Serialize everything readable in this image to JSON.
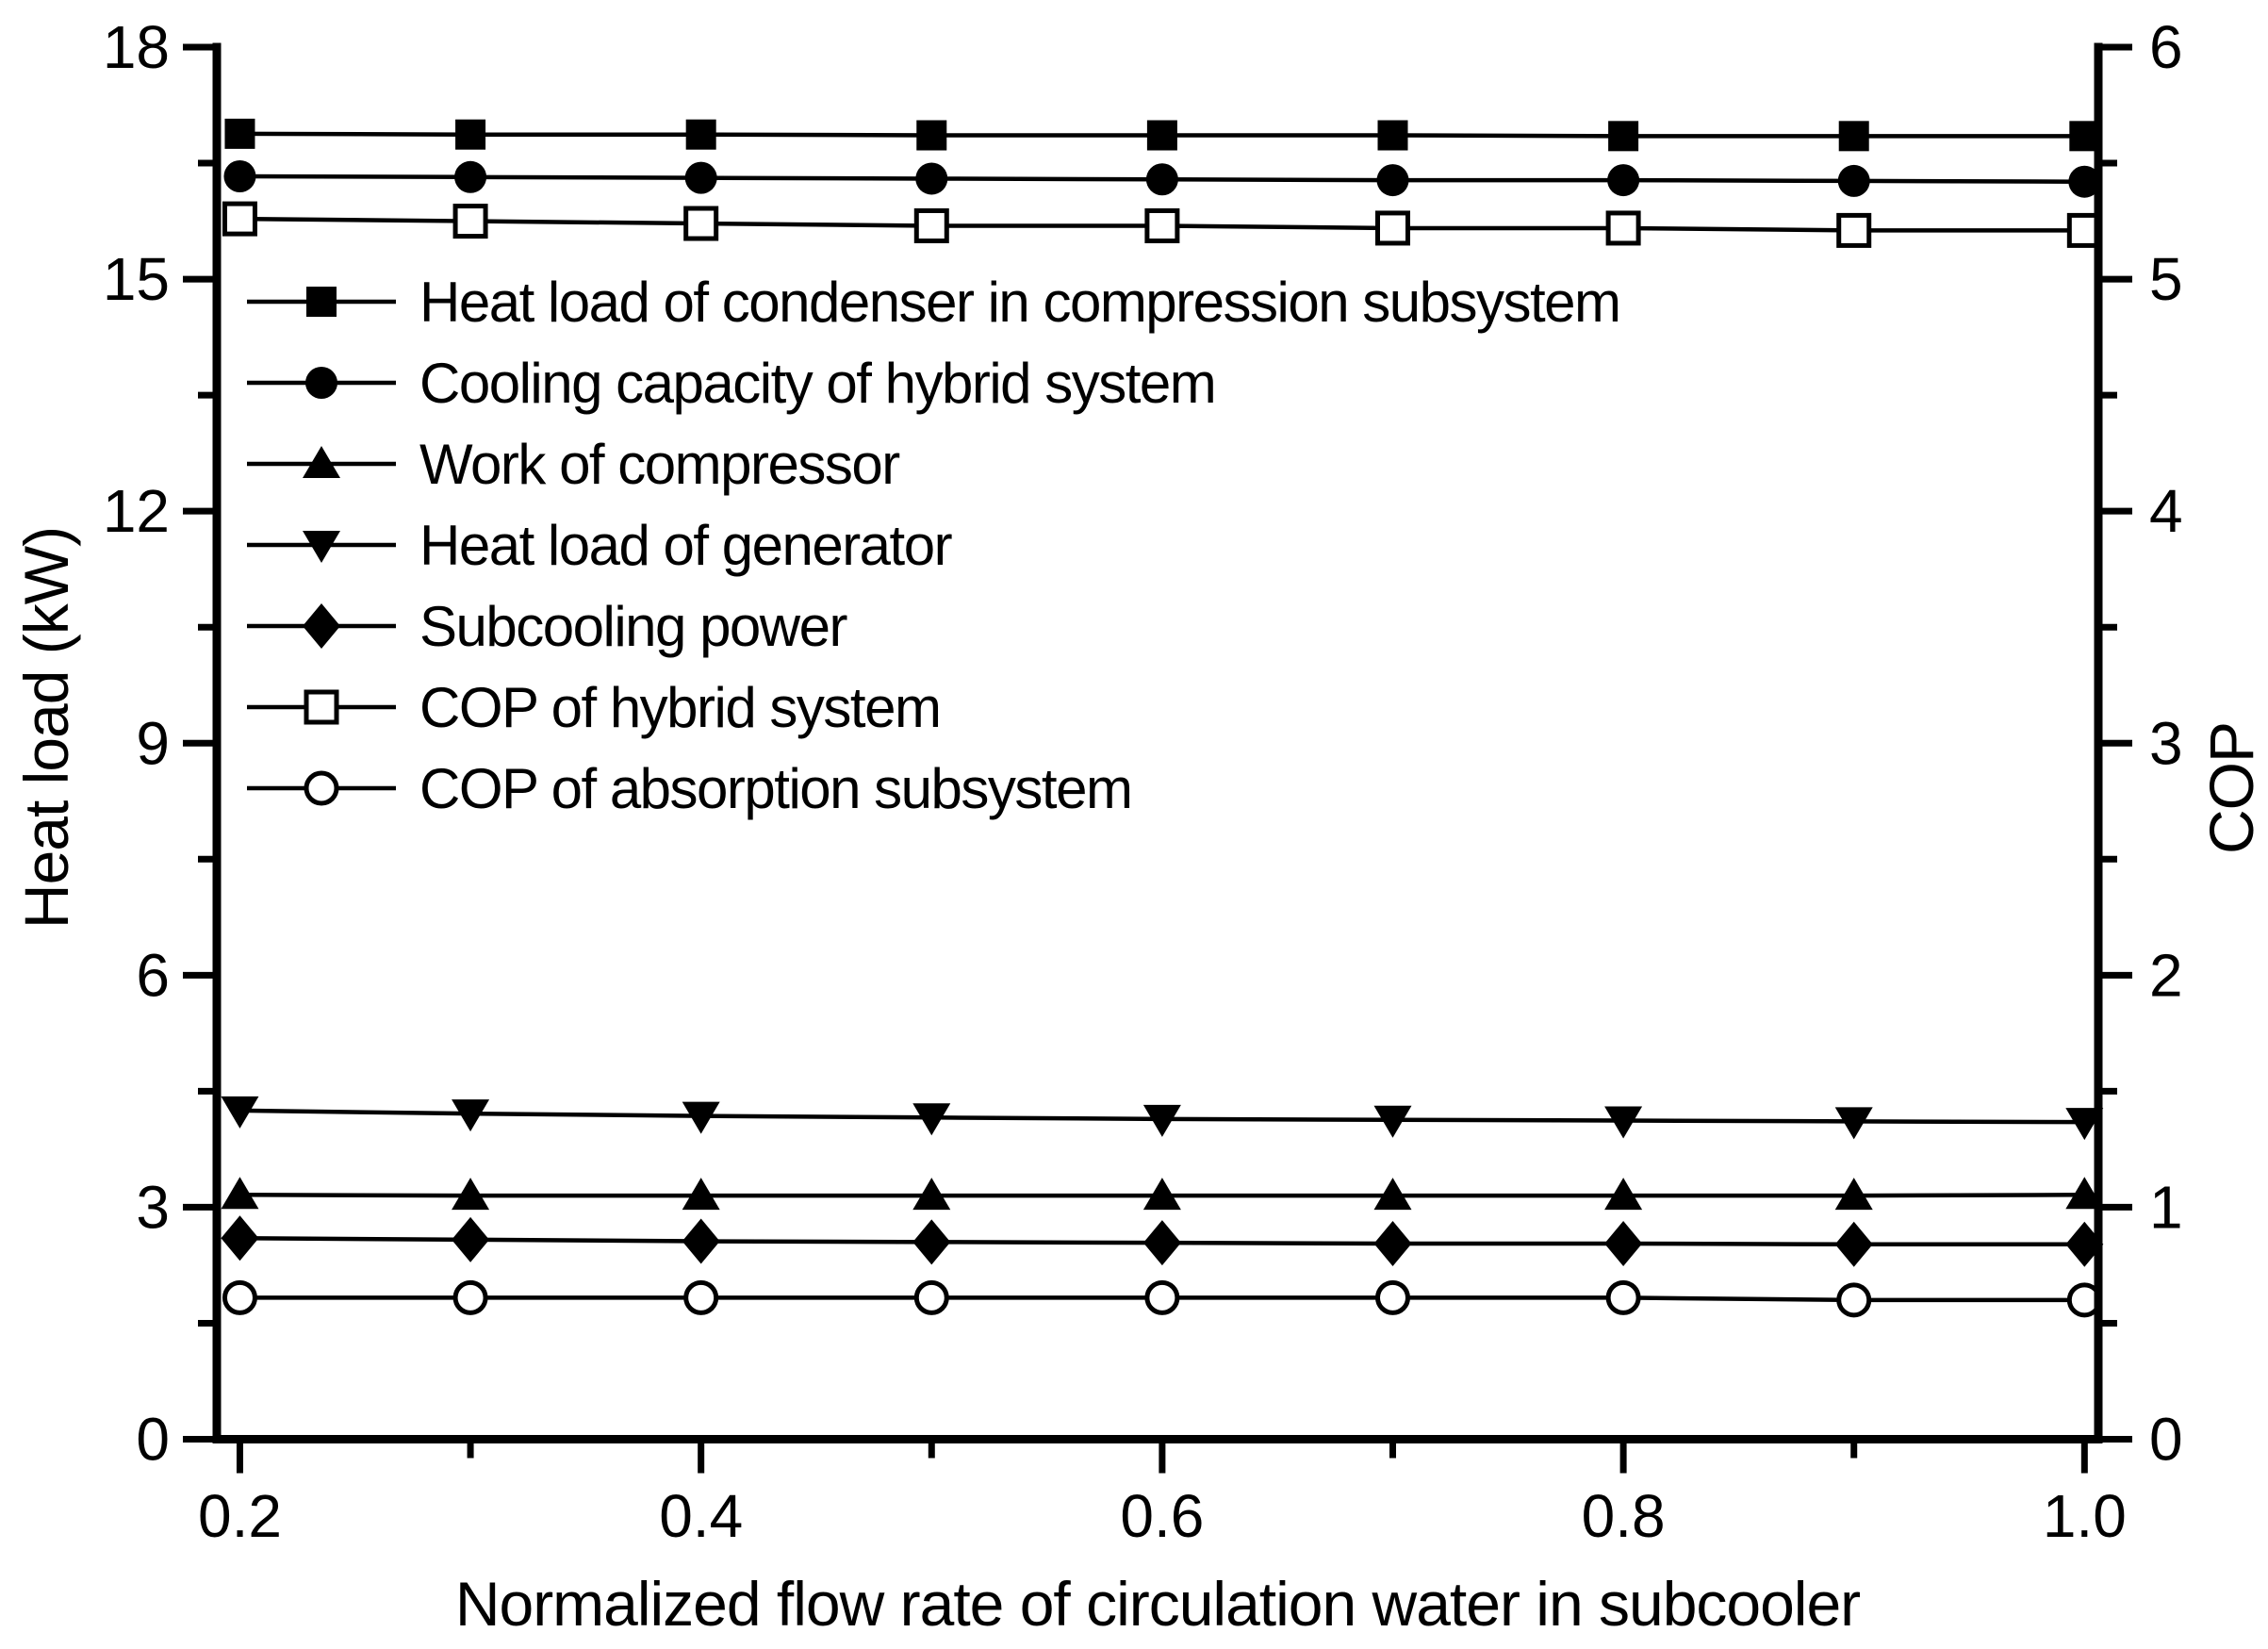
{
  "figure": {
    "background": "#ffffff",
    "ink": "#000000"
  },
  "chart_data": {
    "type": "line",
    "title": "",
    "xlabel": "Normalized flow rate of circulation water in subcooler",
    "ylabel_left": "Heat load (kW)",
    "ylabel_right": "COP",
    "grid": false,
    "legend_position": "upper-left-inside",
    "xlim": [
      0.19,
      1.006
    ],
    "x_ticks": [
      0.2,
      0.4,
      0.6,
      0.8,
      1.0
    ],
    "x_tick_labels": [
      "0.2",
      "0.4",
      "0.6",
      "0.8",
      "1.0"
    ],
    "x_minor_ticks": [
      0.3,
      0.5,
      0.7,
      0.9
    ],
    "ylim_left": [
      0,
      18
    ],
    "y_ticks_left": [
      0,
      3,
      6,
      9,
      12,
      15,
      18
    ],
    "y_tick_labels_left": [
      "0",
      "3",
      "6",
      "9",
      "12",
      "15",
      "18"
    ],
    "y_minor_ticks_left": [
      1.5,
      4.5,
      7.5,
      10.5,
      13.5,
      16.5
    ],
    "ylim_right": [
      0,
      6
    ],
    "y_ticks_right": [
      0,
      1,
      2,
      3,
      4,
      5,
      6
    ],
    "y_tick_labels_right": [
      "0",
      "1",
      "2",
      "3",
      "4",
      "5",
      "6"
    ],
    "y_minor_ticks_right": [
      0.5,
      1.5,
      2.5,
      3.5,
      4.5,
      5.5
    ],
    "x": [
      0.2,
      0.3,
      0.4,
      0.5,
      0.6,
      0.7,
      0.8,
      0.9,
      1.0
    ],
    "series": [
      {
        "id": "condenser-heat-load",
        "name": "Heat load of condenser in compression subsystem",
        "marker": "square-filled",
        "axis": "left",
        "values": [
          16.88,
          16.87,
          16.87,
          16.86,
          16.86,
          16.86,
          16.85,
          16.85,
          16.85
        ]
      },
      {
        "id": "cooling-capacity",
        "name": "Cooling capacity of hybrid system",
        "marker": "circle-filled",
        "axis": "left",
        "values": [
          16.33,
          16.32,
          16.31,
          16.3,
          16.29,
          16.28,
          16.28,
          16.27,
          16.26
        ]
      },
      {
        "id": "compressor-work",
        "name": "Work of compressor",
        "marker": "triangle-up-filled",
        "axis": "left",
        "values": [
          3.16,
          3.15,
          3.15,
          3.15,
          3.15,
          3.15,
          3.15,
          3.15,
          3.16
        ]
      },
      {
        "id": "generator-heat-load",
        "name": "Heat load of generator",
        "marker": "triangle-down-filled",
        "axis": "left",
        "values": [
          4.25,
          4.21,
          4.18,
          4.16,
          4.14,
          4.13,
          4.12,
          4.11,
          4.1
        ]
      },
      {
        "id": "subcooling-power",
        "name": "Subcooling power",
        "marker": "diamond-filled",
        "axis": "left",
        "values": [
          2.6,
          2.58,
          2.56,
          2.55,
          2.54,
          2.53,
          2.53,
          2.52,
          2.52
        ]
      },
      {
        "id": "cop-hybrid",
        "name": "COP of hybrid system",
        "marker": "square-open",
        "axis": "right",
        "values": [
          5.26,
          5.25,
          5.24,
          5.23,
          5.23,
          5.22,
          5.22,
          5.21,
          5.21
        ]
      },
      {
        "id": "cop-absorption",
        "name": "COP of absorption subsystem",
        "marker": "circle-open",
        "axis": "right",
        "values": [
          0.61,
          0.61,
          0.61,
          0.61,
          0.61,
          0.61,
          0.61,
          0.6,
          0.6
        ]
      }
    ]
  }
}
